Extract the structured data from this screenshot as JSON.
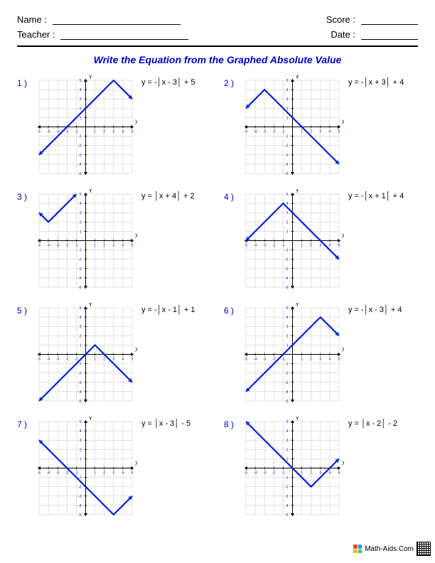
{
  "header": {
    "name_label": "Name :",
    "teacher_label": "Teacher :",
    "score_label": "Score :",
    "date_label": "Date :"
  },
  "title": "Write the Equation from the Graphed Absolute Value",
  "footer": {
    "site": "Math-Aids.Com"
  },
  "graph_style": {
    "xlim": [
      -5,
      5
    ],
    "ylim": [
      -5,
      5
    ],
    "tick_step": 1,
    "grid_color": "#c7c7c7",
    "axis_color": "#000000",
    "line_color": "#0022dd",
    "line_width": 2.2,
    "arrow_size": 4,
    "axis_label_x": "X",
    "axis_label_y": "Y",
    "tick_label_fontsize": 5,
    "tick_label_color": "#0022dd"
  },
  "problems": [
    {
      "num": "1 )",
      "equation": "y = -│x - 3│ + 5",
      "a": -1,
      "h": 3,
      "k": 5
    },
    {
      "num": "2 )",
      "equation": "y = -│x + 3│ + 4",
      "a": -1,
      "h": -3,
      "k": 4
    },
    {
      "num": "3 )",
      "equation": "y = │x + 4│ + 2",
      "a": 1,
      "h": -4,
      "k": 2
    },
    {
      "num": "4 )",
      "equation": "y = -│x + 1│ + 4",
      "a": -1,
      "h": -1,
      "k": 4
    },
    {
      "num": "5 )",
      "equation": "y = -│x - 1│ + 1",
      "a": -1,
      "h": 1,
      "k": 1
    },
    {
      "num": "6 )",
      "equation": "y = -│x - 3│ + 4",
      "a": -1,
      "h": 3,
      "k": 4
    },
    {
      "num": "7 )",
      "equation": "y = │x - 3│ - 5",
      "a": 1,
      "h": 3,
      "k": -5
    },
    {
      "num": "8 )",
      "equation": "y = │x - 2│ - 2",
      "a": 1,
      "h": 2,
      "k": -2
    }
  ]
}
